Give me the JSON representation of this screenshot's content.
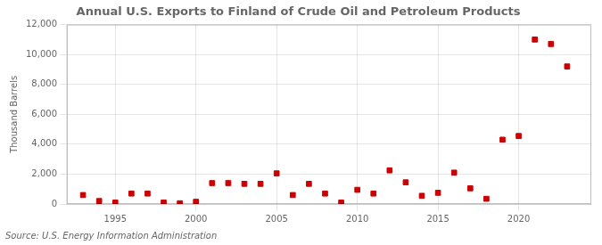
{
  "chart_data": {
    "type": "scatter",
    "title": "Annual U.S. Exports to Finland of Crude Oil and Petroleum Products",
    "ylabel": "Thousand Barrels",
    "annotations": [
      "Source: U.S. Energy Information Administration"
    ],
    "x": [
      1993,
      1994,
      1995,
      1996,
      1997,
      1998,
      1999,
      2000,
      2001,
      2002,
      2003,
      2004,
      2005,
      2006,
      2007,
      2008,
      2009,
      2010,
      2011,
      2012,
      2013,
      2014,
      2015,
      2016,
      2017,
      2018,
      2019,
      2020,
      2021,
      2022,
      2023
    ],
    "values": [
      600,
      200,
      100,
      700,
      700,
      100,
      50,
      150,
      1400,
      1400,
      1350,
      1350,
      2050,
      600,
      1350,
      700,
      100,
      950,
      700,
      2250,
      1450,
      550,
      750,
      2100,
      1050,
      350,
      4300,
      4550,
      11000,
      10700,
      9200
    ],
    "color": "#cc0000",
    "marker": "square",
    "xlim": [
      1992,
      2024.5
    ],
    "xticks": [
      1995,
      2000,
      2005,
      2010,
      2015,
      2020
    ],
    "ylim": [
      0,
      12000
    ],
    "yticks": [
      0,
      {
        "value": 2000,
        "label": "2,000"
      },
      {
        "value": 4000,
        "label": "4,000"
      },
      {
        "value": 6000,
        "label": "6,000"
      },
      {
        "value": 8000,
        "label": "8,000"
      },
      {
        "value": 10000,
        "label": "10,000"
      },
      {
        "value": 12000,
        "label": "12,000"
      }
    ],
    "grid": true
  }
}
